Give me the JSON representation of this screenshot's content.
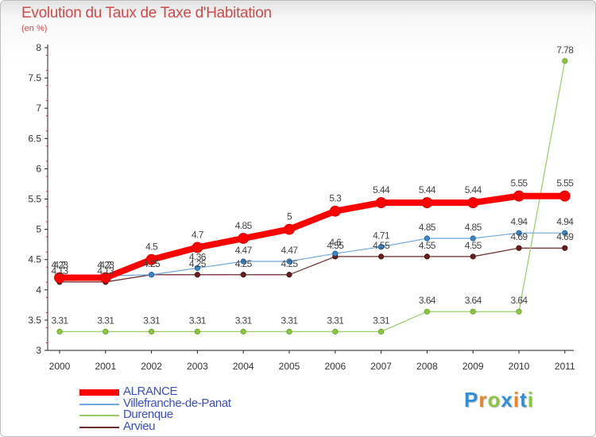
{
  "title": "Evolution du Taux de Taxe d'Habitation",
  "unit": "(en %)",
  "brand": {
    "letters": [
      "P",
      "r",
      "o",
      "x",
      "i",
      "t",
      "i"
    ],
    "colors": [
      "#2f8fd8",
      "#e8842a",
      "#8cc63f",
      "#2f8fd8",
      "#e8842a",
      "#2f8fd8",
      "#8cc63f"
    ]
  },
  "chart_data": {
    "type": "line",
    "x": [
      "2000",
      "2001",
      "2002",
      "2003",
      "2004",
      "2005",
      "2006",
      "2007",
      "2008",
      "2009",
      "2010",
      "2011"
    ],
    "ylim": [
      3,
      8
    ],
    "yticks": [
      "3",
      "3.5",
      "4",
      "4.5",
      "5",
      "5.5",
      "6",
      "6.5",
      "7",
      "7.5",
      "8"
    ],
    "grid": false,
    "legend_position": "bottom-left",
    "series": [
      {
        "name": "ALRANCE",
        "color": "#ff0000",
        "values": [
          4.2,
          4.2,
          4.5,
          4.7,
          4.85,
          5,
          5.3,
          5.44,
          5.44,
          5.44,
          5.55,
          5.55
        ],
        "labels": [
          "4.2",
          "4.2",
          "4.5",
          "4.7",
          "4.85",
          "5",
          "5.3",
          "5.44",
          "5.44",
          "5.44",
          "5.55",
          "5.55"
        ]
      },
      {
        "name": "Villefranche-de-Panat",
        "color": "#6fa8dc",
        "values": [
          4.23,
          4.23,
          4.25,
          4.36,
          4.47,
          4.47,
          4.6,
          4.71,
          4.85,
          4.85,
          4.94,
          4.94
        ],
        "labels": [
          "4.23",
          "4.23",
          "4.25",
          "4.36",
          "4.47",
          "4.47",
          "4.6",
          "4.71",
          "4.85",
          "4.85",
          "4.94",
          "4.94"
        ]
      },
      {
        "name": "Durenque",
        "color": "#99cc66",
        "values": [
          3.31,
          3.31,
          3.31,
          3.31,
          3.31,
          3.31,
          3.31,
          3.31,
          3.64,
          3.64,
          3.64,
          7.78
        ],
        "labels": [
          "3.31",
          "3.31",
          "3.31",
          "3.31",
          "3.31",
          "3.31",
          "3.31",
          "3.31",
          "3.64",
          "3.64",
          "3.64",
          "7.78"
        ]
      },
      {
        "name": "Arvieu",
        "color": "#6b2a2a",
        "values": [
          4.13,
          4.13,
          4.25,
          4.25,
          4.25,
          4.25,
          4.55,
          4.55,
          4.55,
          4.55,
          4.69,
          4.69
        ],
        "labels": [
          "4.13",
          "4.13",
          "4.25",
          "4.25",
          "4.25",
          "4.25",
          "4.55",
          "4.55",
          "4.55",
          "4.55",
          "4.69",
          "4.69"
        ]
      }
    ]
  }
}
